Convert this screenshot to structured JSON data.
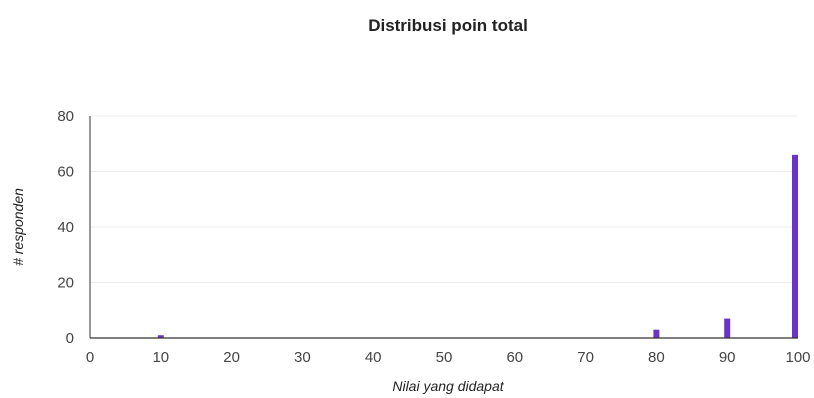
{
  "chart_data": {
    "type": "bar",
    "title": "Distribusi poin total",
    "xlabel": "Nilai yang didapat",
    "ylabel": "# responden",
    "xlim": [
      0,
      100
    ],
    "ylim": [
      0,
      80
    ],
    "x_ticks": [
      "0",
      "10",
      "20",
      "30",
      "40",
      "50",
      "60",
      "70",
      "80",
      "90",
      "100"
    ],
    "y_ticks": [
      "0",
      "20",
      "40",
      "60",
      "80"
    ],
    "grid": true,
    "bar_color": "#6a35c4",
    "x": [
      10,
      80,
      90,
      100
    ],
    "values": [
      1,
      3,
      7,
      66
    ]
  }
}
